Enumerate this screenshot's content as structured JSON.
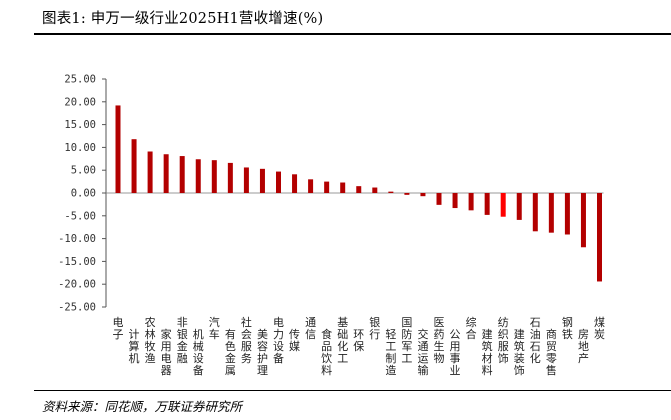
{
  "header": {
    "title": "图表1:  申万一级行业2025H1营收增速(%)"
  },
  "footer": {
    "source": "资料来源：同花顺，万联证券研究所"
  },
  "chart_data": {
    "type": "bar",
    "title": "申万一级行业2025H1营收增速(%)",
    "xlabel": "",
    "ylabel": "",
    "ylim": [
      -25,
      25
    ],
    "yticks": [
      "25.00",
      "20.00",
      "15.00",
      "10.00",
      "5.00",
      "0.00",
      "-5.00",
      "-10.00",
      "-15.00",
      "-20.00",
      "-25.00"
    ],
    "grid": false,
    "legend": "none",
    "colors": {
      "bar": "#b30000",
      "highlight": "#ff0000"
    },
    "categories": [
      "电子",
      "计算机",
      "农林牧渔",
      "家用电器",
      "非银金融",
      "机械设备",
      "汽车",
      "有色金属",
      "社会服务",
      "美容护理",
      "电力设备",
      "传媒",
      "通信",
      "食品饮料",
      "基础化工",
      "环保",
      "银行",
      "轻工制造",
      "国防军工",
      "交通运输",
      "医药生物",
      "公用事业",
      "综合",
      "建筑材料",
      "纺织服饰",
      "建筑装饰",
      "石油石化",
      "商贸零售",
      "钢铁",
      "房地产",
      "煤炭"
    ],
    "values": [
      19.2,
      11.8,
      9.1,
      8.5,
      8.1,
      7.4,
      7.2,
      6.6,
      5.6,
      5.3,
      4.7,
      4.1,
      3.0,
      2.5,
      2.3,
      1.5,
      1.2,
      0.3,
      -0.4,
      -0.7,
      -2.6,
      -3.3,
      -3.8,
      -4.8,
      -5.2,
      -5.9,
      -8.4,
      -8.7,
      -9.1,
      -11.9,
      -19.4
    ],
    "highlight_index": 24
  }
}
